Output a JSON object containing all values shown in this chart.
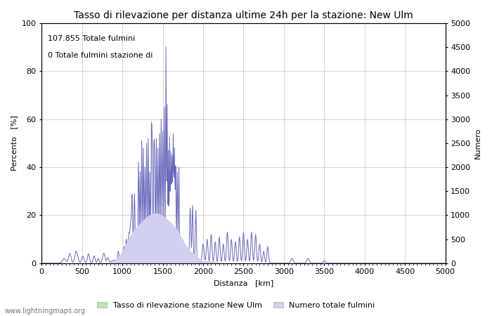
{
  "title": "Tasso di rilevazione per distanza ultime 24h per la stazione: New Ulm",
  "xlabel": "Distanza   [km]",
  "ylabel_left": "Percento   [%]",
  "ylabel_right": "Numero",
  "annotation_line1": "107.855 Totale fulmini",
  "annotation_line2": "0 Totale fulmini stazione di",
  "xlim": [
    0,
    5000
  ],
  "ylim_left": [
    0,
    100
  ],
  "ylim_right": [
    0,
    5000
  ],
  "xticks": [
    0,
    500,
    1000,
    1500,
    2000,
    2500,
    3000,
    3500,
    4000,
    4500,
    5000
  ],
  "yticks_left": [
    0,
    20,
    40,
    60,
    80,
    100
  ],
  "yticks_right": [
    0,
    500,
    1000,
    1500,
    2000,
    2500,
    3000,
    3500,
    4000,
    4500,
    5000
  ],
  "legend_label1": "Tasso di rilevazione stazione New Ulm",
  "legend_label2": "Numero totale fulmini",
  "fill_color_green": "#b8e8b0",
  "fill_color_blue": "#d0d0f0",
  "line_color": "#6666bb",
  "grid_color": "#cccccc",
  "bg_color": "#ffffff",
  "watermark": "www.lightningmaps.org",
  "title_fontsize": 10,
  "axis_label_fontsize": 8,
  "tick_fontsize": 8,
  "annotation_fontsize": 8
}
